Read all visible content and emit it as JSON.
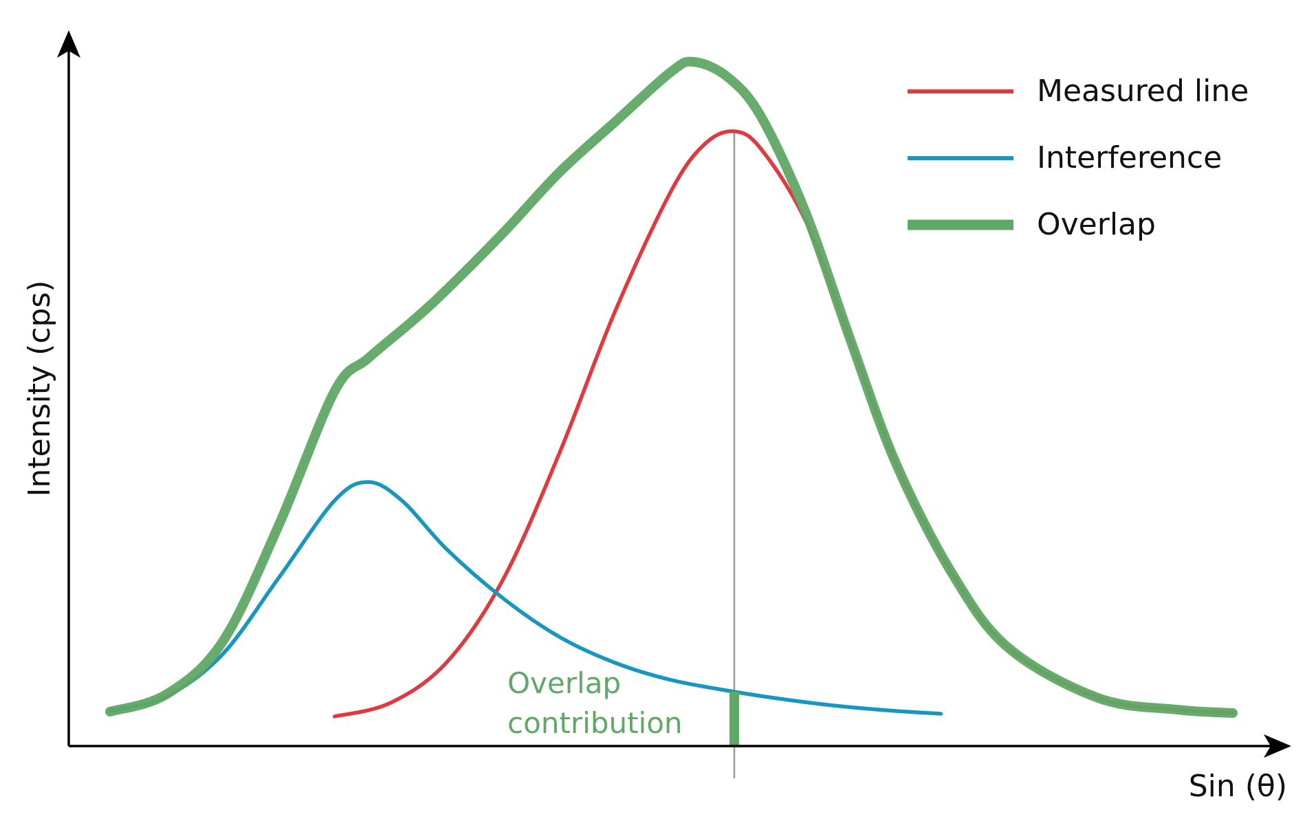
{
  "chart_data": {
    "type": "line",
    "title": "",
    "xlabel": "Sin (θ)",
    "ylabel": "Intensity (cps)",
    "xlim": [
      0,
      100
    ],
    "ylim": [
      0,
      100
    ],
    "grid": false,
    "legend_position": "top-right",
    "reference_line": {
      "x": 55.6,
      "label": ""
    },
    "annotation": {
      "lines": [
        "Overlap",
        "contribution"
      ],
      "x": 55.6,
      "color": "#5fa865"
    },
    "series": [
      {
        "name": "Measured line",
        "color": "#e03a3e",
        "points": [
          [
            20,
            4.3
          ],
          [
            25,
            6.3
          ],
          [
            30,
            12.2
          ],
          [
            35,
            24.2
          ],
          [
            40,
            42.5
          ],
          [
            45,
            63.3
          ],
          [
            50,
            80.8
          ],
          [
            53,
            87.6
          ],
          [
            55.6,
            89.4
          ],
          [
            58,
            86.8
          ],
          [
            62,
            76.2
          ],
          [
            66,
            58.8
          ],
          [
            70,
            41.1
          ],
          [
            75,
            25.1
          ],
          [
            80,
            14.3
          ],
          [
            88,
            7.0
          ],
          [
            95,
            5.3
          ],
          [
            100,
            4.8
          ]
        ]
      },
      {
        "name": "Interference",
        "color": "#1797c0",
        "points": [
          [
            0,
            5.1
          ],
          [
            5,
            7.2
          ],
          [
            10,
            13.3
          ],
          [
            15,
            24.4
          ],
          [
            20,
            35.7
          ],
          [
            23,
            38.4
          ],
          [
            26,
            35.7
          ],
          [
            30,
            28.6
          ],
          [
            35,
            21.5
          ],
          [
            40,
            15.9
          ],
          [
            45,
            12.1
          ],
          [
            50,
            9.6
          ],
          [
            55.6,
            7.9
          ],
          [
            60,
            6.8
          ],
          [
            65,
            5.8
          ],
          [
            70,
            5.1
          ],
          [
            74,
            4.7
          ]
        ]
      },
      {
        "name": "Overlap",
        "color": "#5fa865",
        "points": [
          [
            0,
            5.0
          ],
          [
            5,
            7.5
          ],
          [
            10,
            15.1
          ],
          [
            15,
            32.0
          ],
          [
            20,
            51.6
          ],
          [
            23,
            56.4
          ],
          [
            27,
            61.9
          ],
          [
            30,
            66.4
          ],
          [
            35,
            74.6
          ],
          [
            40,
            83.4
          ],
          [
            45,
            90.8
          ],
          [
            50,
            98.1
          ],
          [
            52,
            99.5
          ],
          [
            55,
            97.3
          ],
          [
            58,
            91.5
          ],
          [
            62,
            77.4
          ],
          [
            66,
            58.8
          ],
          [
            70,
            41.1
          ],
          [
            75,
            25.1
          ],
          [
            80,
            14.3
          ],
          [
            88,
            7.0
          ],
          [
            95,
            5.3
          ],
          [
            100,
            4.8
          ]
        ]
      }
    ]
  }
}
